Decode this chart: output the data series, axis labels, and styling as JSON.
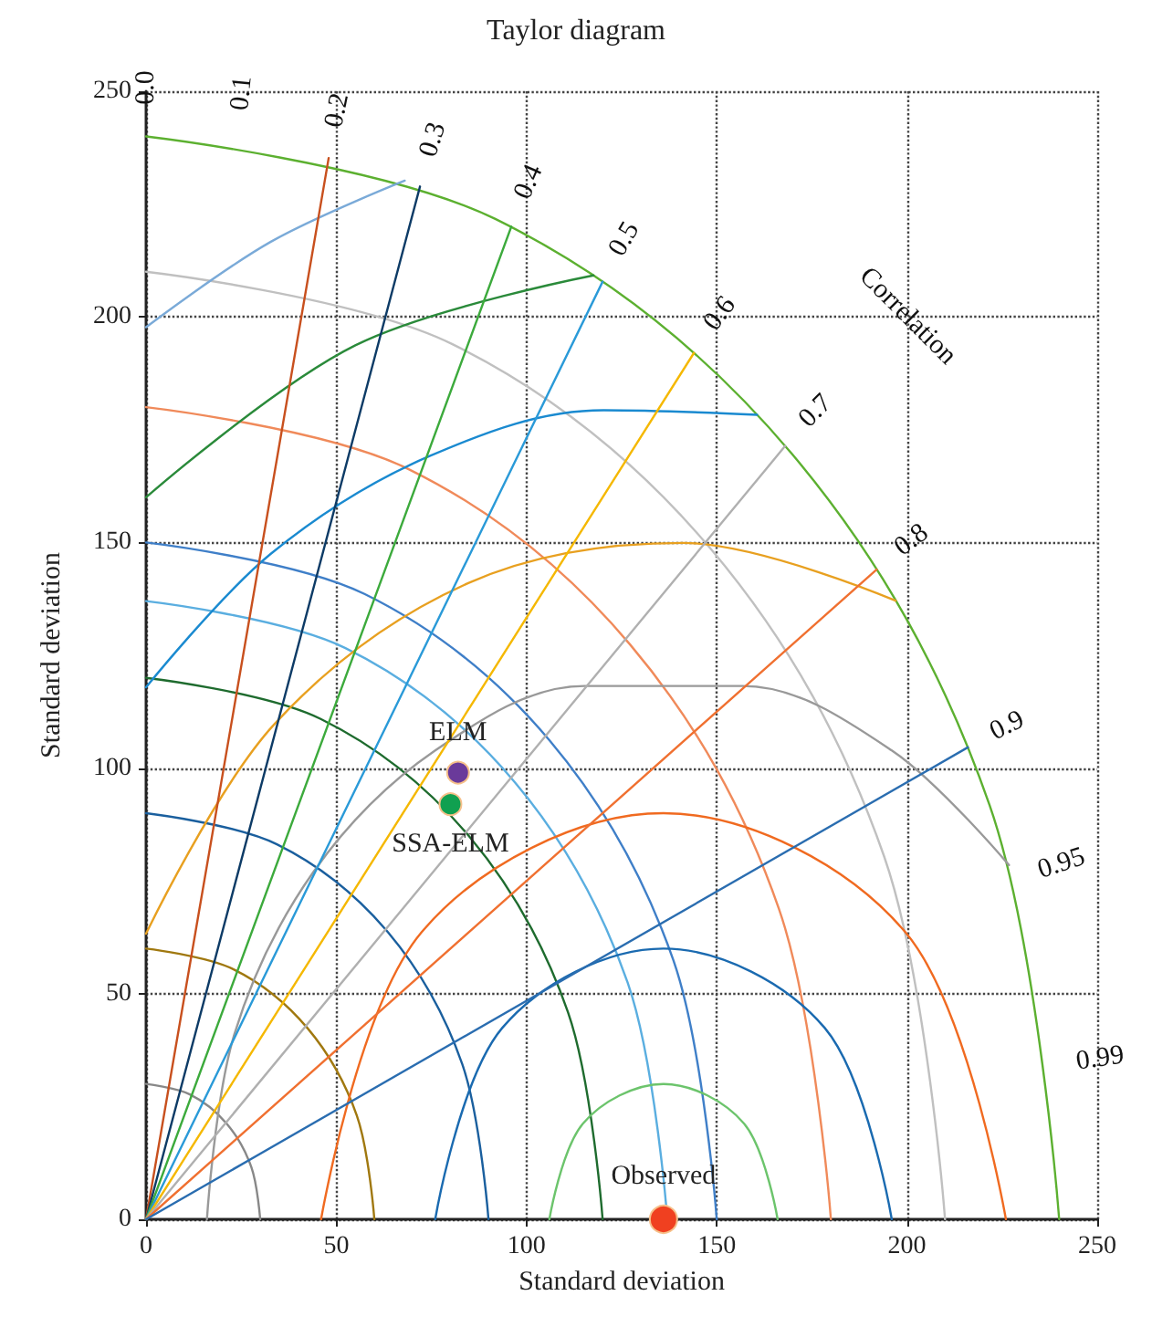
{
  "chart_data": {
    "type": "scatter",
    "title": "Taylor diagram",
    "xlabel": "Standard deviation",
    "ylabel": "Standard deviation",
    "xlim": [
      0,
      250
    ],
    "ylim": [
      0,
      250
    ],
    "xticks": [
      0,
      50,
      100,
      150,
      200,
      250
    ],
    "yticks": [
      0,
      50,
      100,
      150,
      200,
      250
    ],
    "grid": true,
    "legend": false,
    "series": [
      {
        "type": "line",
        "color": "#888888",
        "x": [
          30,
          27.7,
          21.2,
          11.5,
          0
        ],
        "values": [
          0,
          11.5,
          21.2,
          27.7,
          30
        ]
      },
      {
        "type": "line",
        "color": "#a0780f",
        "x": [
          60,
          55.4,
          42.4,
          23,
          0
        ],
        "values": [
          0,
          23,
          42.4,
          55.4,
          60
        ]
      },
      {
        "type": "line",
        "color": "#1a5f9e",
        "x": [
          90,
          83.1,
          63.6,
          34.4,
          0
        ],
        "values": [
          0,
          34.4,
          63.6,
          83.1,
          90
        ]
      },
      {
        "type": "line",
        "color": "#1e6b2e",
        "x": [
          120,
          110.9,
          84.9,
          45.9,
          0
        ],
        "values": [
          0,
          45.9,
          84.9,
          110.9,
          120
        ]
      },
      {
        "type": "line",
        "color": "#5aaee0",
        "x": [
          137,
          126.6,
          96.9,
          52.4,
          0
        ],
        "values": [
          0,
          52.4,
          96.9,
          126.6,
          137
        ]
      },
      {
        "type": "line",
        "color": "#3f7fc8",
        "x": [
          150,
          138.6,
          106.1,
          57.4,
          0
        ],
        "values": [
          0,
          57.4,
          106.1,
          138.6,
          150
        ]
      },
      {
        "type": "line",
        "color": "#f08a5a",
        "x": [
          180,
          166.3,
          127.3,
          68.9,
          0
        ],
        "values": [
          0,
          68.9,
          127.3,
          166.3,
          180
        ]
      },
      {
        "type": "line",
        "color": "#c0c0c0",
        "x": [
          210,
          194,
          148.5,
          80.4,
          0
        ],
        "values": [
          0,
          80.4,
          148.5,
          194,
          210
        ]
      },
      {
        "type": "line",
        "color": "#5cb030",
        "x": [
          240,
          221.7,
          169.7,
          91.8,
          0
        ],
        "values": [
          0,
          91.8,
          169.7,
          221.7,
          240
        ]
      },
      {
        "type": "line",
        "color": "#6cc46c",
        "x": [
          166,
          157.2,
          136,
          114.8,
          106
        ],
        "values": [
          0,
          21.2,
          30,
          21.2,
          0
        ]
      },
      {
        "type": "line",
        "color": "#1a6ab0",
        "x": [
          196,
          178.4,
          136,
          93.6,
          76
        ],
        "values": [
          0,
          42.4,
          60,
          42.4,
          0
        ]
      },
      {
        "type": "line",
        "color": "#f06a20",
        "x": [
          226,
          199.6,
          136,
          72.4,
          46
        ],
        "values": [
          0,
          63.6,
          90,
          63.6,
          0
        ]
      },
      {
        "type": "line",
        "color": "#999999",
        "x": [
          226.8,
          196,
          156.8,
          115.2,
          76,
          44.1,
          23.2,
          16
        ],
        "values": [
          78.5,
          103.9,
          118.2,
          118.2,
          103.9,
          77.1,
          41,
          0
        ]
      },
      {
        "type": "line",
        "color": "#e8a020",
        "x": [
          197,
          141.2,
          84.7,
          33.7,
          0
        ],
        "values": [
          137.1,
          149.9,
          141,
          109.7,
          63.3
        ]
      },
      {
        "type": "line",
        "color": "#1a8ad0",
        "x": [
          160.6,
          120.3,
          74.4,
          32.8,
          0
        ],
        "values": [
          178.3,
          179.3,
          169.1,
          147.5,
          117.9
        ]
      },
      {
        "type": "line",
        "color": "#2a8a3a",
        "x": [
          117.6,
          55,
          0
        ],
        "values": [
          209.2,
          193.7,
          160
        ]
      },
      {
        "type": "line",
        "color": "#7aaad8",
        "x": [
          68,
          32.7,
          0
        ],
        "values": [
          230.2,
          216.6,
          197.7
        ]
      },
      {
        "type": "line",
        "color": "#c8501e",
        "x": [
          0,
          48
        ],
        "values": [
          0,
          235.2
        ]
      },
      {
        "type": "line",
        "color": "#0d3b66",
        "x": [
          0,
          72
        ],
        "values": [
          0,
          228.9
        ]
      },
      {
        "type": "line",
        "color": "#3caa3c",
        "x": [
          0,
          96
        ],
        "values": [
          0,
          220
        ]
      },
      {
        "type": "line",
        "color": "#2a9ad8",
        "x": [
          0,
          120
        ],
        "values": [
          0,
          207.8
        ]
      },
      {
        "type": "line",
        "color": "#f5b800",
        "x": [
          0,
          144
        ],
        "values": [
          0,
          192
        ]
      },
      {
        "type": "line",
        "color": "#b0b0b0",
        "x": [
          0,
          168
        ],
        "values": [
          0,
          171.4
        ]
      },
      {
        "type": "line",
        "color": "#f07030",
        "x": [
          0,
          192
        ],
        "values": [
          0,
          144
        ]
      },
      {
        "type": "line",
        "color": "#2a6db0",
        "x": [
          0,
          216
        ],
        "values": [
          0,
          104.6
        ]
      },
      {
        "name": "ELM",
        "color": "#6a3a9a",
        "marker": "circle",
        "x": [
          82
        ],
        "values": [
          99
        ]
      },
      {
        "name": "SSA-ELM",
        "color": "#10a050",
        "marker": "circle",
        "x": [
          80
        ],
        "values": [
          92
        ]
      },
      {
        "name": "Observed",
        "color": "#f04020",
        "marker": "circle",
        "x": [
          136
        ],
        "values": [
          0
        ]
      }
    ],
    "annotations": [
      "0.0",
      "0.1",
      "0.2",
      "0.3",
      "0.4",
      "0.5",
      "0.6",
      "0.7",
      "0.8",
      "0.9",
      "0.95",
      "0.99",
      "Correlation"
    ]
  }
}
